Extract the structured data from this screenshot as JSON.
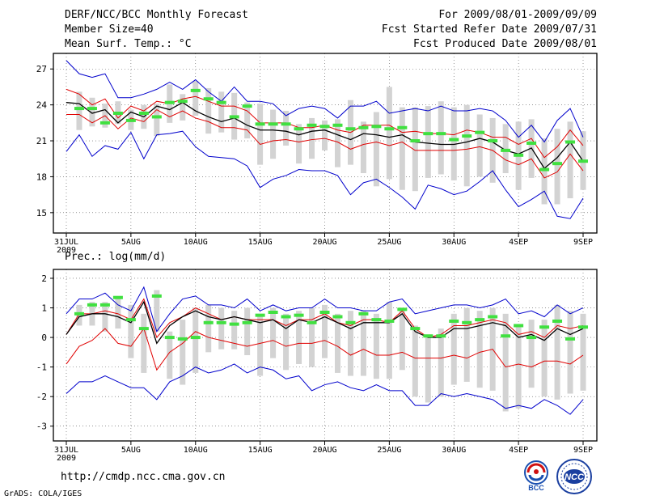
{
  "header": {
    "title": "DERF/NCC/BCC Monthly Forecast",
    "member_size": "Member Size=40",
    "variable": "Mean Surf. Temp.: °C",
    "forecast_range": "For 2009/08/01-2009/09/09",
    "fcst_started": "Fcst Started Refer Date 2009/07/31",
    "fcst_produced": "Fcst Produced Date 2009/08/01"
  },
  "footer": {
    "url": "http://cmdp.ncc.cma.gov.cn",
    "grads": "GrADS: COLA/IGES",
    "logo_bcc": "BCC",
    "logo_ncc": "NCC"
  },
  "colors": {
    "box": "#d3d3d3",
    "ens_mean": "#000000",
    "inner_band": "#e00000",
    "outer_band": "#0000cc",
    "marker": "#40e040"
  },
  "chart_data": [
    {
      "type": "box-line",
      "title": "",
      "ylabel": "Mean Surf. Temp.: °C",
      "ylim": [
        13.3,
        28.3
      ],
      "yticks": [
        15,
        18,
        21,
        24,
        27
      ],
      "xlim": [
        0,
        40
      ],
      "xticks": [
        {
          "day": 0,
          "label": "31JUL",
          "sublabel": "2009"
        },
        {
          "day": 5,
          "label": "5AUG"
        },
        {
          "day": 10,
          "label": "10AUG"
        },
        {
          "day": 15,
          "label": "15AUG"
        },
        {
          "day": 20,
          "label": "20AUG"
        },
        {
          "day": 25,
          "label": "25AUG"
        },
        {
          "day": 30,
          "label": "30AUG"
        },
        {
          "day": 35,
          "label": "4SEP"
        },
        {
          "day": 40,
          "label": "9SEP"
        }
      ],
      "days": [
        1,
        2,
        3,
        4,
        5,
        6,
        7,
        8,
        9,
        10,
        11,
        12,
        13,
        14,
        15,
        16,
        17,
        18,
        19,
        20,
        21,
        22,
        23,
        24,
        25,
        26,
        27,
        28,
        29,
        30,
        31,
        32,
        33,
        34,
        35,
        36,
        37,
        38,
        39,
        40
      ],
      "series": [
        {
          "name": "upper-outer",
          "values": [
            27.7,
            26.6,
            26.3,
            26.6,
            24.6,
            24.6,
            24.9,
            25.3,
            25.9,
            25.3,
            26.1,
            25.1,
            24.3,
            25.5,
            24.3,
            24.3,
            24.1,
            23.1,
            23.7,
            23.9,
            23.7,
            22.9,
            23.9,
            23.9,
            24.3,
            23.3,
            23.5,
            23.7,
            23.5,
            23.9,
            23.5,
            23.5,
            23.7,
            23.5,
            22.7,
            21.3,
            22.3,
            20.9,
            22.7,
            23.7,
            21.3
          ]
        },
        {
          "name": "upper-inner",
          "values": [
            25.3,
            24.9,
            24.0,
            24.5,
            22.9,
            23.9,
            23.5,
            24.3,
            24.1,
            24.5,
            24.7,
            24.3,
            23.9,
            23.9,
            23.5,
            22.5,
            22.5,
            22.5,
            22.1,
            22.1,
            22.3,
            21.9,
            21.7,
            22.3,
            22.3,
            22.3,
            21.7,
            21.8,
            21.6,
            21.6,
            21.5,
            21.9,
            21.7,
            21.3,
            21.3,
            20.7,
            21.2,
            19.6,
            20.5,
            21.9,
            20.6
          ]
        },
        {
          "name": "ensemble-mean",
          "values": [
            24.2,
            24.1,
            23.3,
            23.6,
            22.5,
            23.4,
            23.0,
            23.9,
            23.6,
            24.2,
            23.5,
            23.0,
            22.6,
            22.9,
            22.3,
            21.9,
            21.9,
            21.8,
            21.5,
            21.8,
            21.9,
            21.5,
            21.1,
            21.6,
            21.5,
            21.3,
            21.5,
            20.9,
            20.8,
            20.7,
            20.7,
            20.9,
            21.2,
            20.9,
            20.2,
            19.9,
            20.4,
            18.7,
            19.6,
            20.9,
            19.3
          ]
        },
        {
          "name": "lower-inner",
          "values": [
            23.2,
            23.2,
            22.5,
            23.1,
            22.0,
            22.9,
            22.6,
            23.6,
            23.0,
            23.5,
            22.9,
            22.6,
            22.1,
            22.1,
            21.9,
            20.7,
            21.0,
            21.1,
            20.9,
            21.1,
            21.2,
            20.9,
            20.3,
            20.7,
            20.9,
            20.6,
            20.9,
            20.2,
            20.2,
            20.2,
            20.2,
            20.3,
            20.5,
            20.2,
            19.4,
            19.0,
            19.5,
            17.9,
            18.4,
            19.9,
            18.5
          ]
        },
        {
          "name": "lower-outer",
          "values": [
            20.1,
            21.5,
            19.7,
            20.6,
            20.3,
            21.7,
            19.5,
            21.5,
            21.6,
            21.8,
            20.5,
            19.7,
            19.6,
            19.5,
            18.9,
            17.1,
            17.8,
            18.1,
            18.6,
            18.5,
            18.5,
            18.1,
            16.5,
            17.5,
            17.8,
            17.1,
            16.3,
            15.3,
            17.3,
            17.0,
            16.5,
            16.8,
            17.6,
            18.5,
            16.9,
            15.5,
            16.1,
            16.8,
            14.7,
            14.5,
            16.2
          ]
        }
      ],
      "boxes": [
        {
          "low": 21.9,
          "high": 25.1
        },
        {
          "low": 22.2,
          "high": 24.6
        },
        {
          "low": 22.1,
          "high": 24.1
        },
        {
          "low": 22.4,
          "high": 24.3
        },
        {
          "low": 21.9,
          "high": 23.6
        },
        {
          "low": 22.0,
          "high": 24.0
        },
        {
          "low": 21.4,
          "high": 24.1
        },
        {
          "low": 22.5,
          "high": 25.7
        },
        {
          "low": 22.7,
          "high": 24.9
        },
        {
          "low": 23.1,
          "high": 26.0
        },
        {
          "low": 21.6,
          "high": 25.4
        },
        {
          "low": 21.7,
          "high": 25.1
        },
        {
          "low": 21.1,
          "high": 25.0
        },
        {
          "low": 21.2,
          "high": 24.2
        },
        {
          "low": 19.0,
          "high": 24.1
        },
        {
          "low": 19.5,
          "high": 23.6
        },
        {
          "low": 20.6,
          "high": 23.5
        },
        {
          "low": 19.1,
          "high": 22.4
        },
        {
          "low": 19.5,
          "high": 22.9
        },
        {
          "low": 20.2,
          "high": 22.7
        },
        {
          "low": 18.8,
          "high": 22.8
        },
        {
          "low": 19.0,
          "high": 24.4
        },
        {
          "low": 18.3,
          "high": 22.6
        },
        {
          "low": 17.2,
          "high": 23.4
        },
        {
          "low": 17.8,
          "high": 25.5
        },
        {
          "low": 16.9,
          "high": 23.8
        },
        {
          "low": 16.8,
          "high": 23.8
        },
        {
          "low": 17.9,
          "high": 23.9
        },
        {
          "low": 18.2,
          "high": 24.3
        },
        {
          "low": 17.7,
          "high": 23.8
        },
        {
          "low": 17.2,
          "high": 24.0
        },
        {
          "low": 18.0,
          "high": 23.2
        },
        {
          "low": 17.5,
          "high": 22.9
        },
        {
          "low": 18.3,
          "high": 22.4
        },
        {
          "low": 16.9,
          "high": 22.6
        },
        {
          "low": 17.9,
          "high": 22.8
        },
        {
          "low": 15.7,
          "high": 21.2
        },
        {
          "low": 15.7,
          "high": 22.0
        },
        {
          "low": 16.2,
          "high": 22.6
        },
        {
          "low": 16.9,
          "high": 21.8
        }
      ],
      "markers": [
        23.7,
        23.7,
        22.5,
        23.3,
        22.7,
        23.3,
        23.0,
        24.2,
        24.3,
        25.2,
        24.5,
        24.2,
        23.0,
        23.9,
        22.4,
        22.4,
        22.4,
        22.0,
        22.3,
        22.2,
        22.3,
        22.0,
        22.1,
        22.2,
        22.0,
        22.1,
        21.0,
        21.6,
        21.6,
        21.1,
        21.4,
        21.7,
        21.0,
        20.2,
        19.8,
        20.8,
        18.6,
        19.1,
        20.9,
        19.3
      ]
    },
    {
      "type": "box-line",
      "title": "",
      "ylabel": "Prec.: log(mm/d)",
      "ylim": [
        -3.5,
        2.3
      ],
      "yticks": [
        -3,
        -2,
        -1,
        0,
        1,
        2
      ],
      "xlim": [
        0,
        40
      ],
      "xticks": [
        {
          "day": 0,
          "label": "31JUL",
          "sublabel": "2009"
        },
        {
          "day": 5,
          "label": "5AUG"
        },
        {
          "day": 10,
          "label": "10AUG"
        },
        {
          "day": 15,
          "label": "15AUG"
        },
        {
          "day": 20,
          "label": "20AUG"
        },
        {
          "day": 25,
          "label": "25AUG"
        },
        {
          "day": 30,
          "label": "30AUG"
        },
        {
          "day": 35,
          "label": "4SEP"
        },
        {
          "day": 40,
          "label": "9SEP"
        }
      ],
      "days": [
        1,
        2,
        3,
        4,
        5,
        6,
        7,
        8,
        9,
        10,
        11,
        12,
        13,
        14,
        15,
        16,
        17,
        18,
        19,
        20,
        21,
        22,
        23,
        24,
        25,
        26,
        27,
        28,
        29,
        30,
        31,
        32,
        33,
        34,
        35,
        36,
        37,
        38,
        39,
        40
      ],
      "series": [
        {
          "name": "upper-outer",
          "values": [
            0.8,
            1.3,
            1.3,
            1.5,
            1.1,
            0.9,
            1.7,
            0.2,
            0.8,
            1.3,
            1.4,
            1.1,
            1.1,
            1.0,
            1.3,
            0.9,
            1.1,
            0.9,
            1.0,
            1.0,
            1.3,
            1.0,
            1.0,
            0.9,
            0.9,
            1.2,
            1.3,
            0.8,
            0.9,
            1.0,
            1.1,
            1.1,
            1.0,
            1.1,
            1.3,
            0.8,
            0.9,
            0.7,
            1.1,
            0.8,
            1.0
          ]
        },
        {
          "name": "upper-inner",
          "values": [
            0.1,
            0.8,
            0.8,
            0.9,
            0.8,
            0.6,
            1.3,
            0.0,
            0.5,
            0.7,
            1.0,
            0.8,
            0.6,
            0.7,
            0.6,
            0.6,
            0.6,
            0.4,
            0.6,
            0.6,
            0.8,
            0.5,
            0.4,
            0.6,
            0.6,
            0.5,
            0.9,
            0.3,
            0.0,
            0.1,
            0.4,
            0.4,
            0.5,
            0.6,
            0.5,
            0.1,
            0.2,
            0.0,
            0.4,
            0.3,
            0.4
          ]
        },
        {
          "name": "ensemble-mean",
          "values": [
            0.1,
            0.7,
            0.8,
            0.8,
            0.7,
            0.5,
            1.2,
            -0.2,
            0.4,
            0.7,
            0.9,
            0.7,
            0.6,
            0.7,
            0.6,
            0.5,
            0.6,
            0.3,
            0.6,
            0.5,
            0.7,
            0.5,
            0.3,
            0.5,
            0.5,
            0.5,
            0.8,
            0.2,
            0.0,
            0.0,
            0.3,
            0.3,
            0.4,
            0.5,
            0.4,
            0.0,
            0.1,
            -0.1,
            0.3,
            0.1,
            0.3
          ]
        },
        {
          "name": "lower-inner",
          "values": [
            -0.9,
            -0.3,
            -0.1,
            0.3,
            -0.2,
            -0.3,
            0.3,
            -1.1,
            -0.5,
            -0.2,
            0.2,
            0.0,
            -0.1,
            -0.2,
            -0.3,
            -0.2,
            -0.1,
            -0.3,
            -0.2,
            -0.2,
            -0.1,
            -0.3,
            -0.6,
            -0.4,
            -0.6,
            -0.6,
            -0.5,
            -0.7,
            -0.7,
            -0.7,
            -0.6,
            -0.7,
            -0.5,
            -0.4,
            -1.0,
            -0.9,
            -1.0,
            -0.8,
            -0.8,
            -0.9,
            -0.6
          ]
        },
        {
          "name": "lower-outer",
          "values": [
            -1.9,
            -1.5,
            -1.5,
            -1.3,
            -1.5,
            -1.7,
            -1.7,
            -2.1,
            -1.5,
            -1.3,
            -1.0,
            -1.2,
            -1.1,
            -0.9,
            -1.2,
            -1.0,
            -1.1,
            -1.4,
            -1.3,
            -1.8,
            -1.6,
            -1.5,
            -1.7,
            -1.8,
            -1.6,
            -1.8,
            -1.8,
            -2.3,
            -2.3,
            -1.9,
            -2.0,
            -1.9,
            -2.0,
            -2.1,
            -2.4,
            -2.3,
            -2.4,
            -2.1,
            -2.3,
            -2.6,
            -2.1
          ]
        }
      ],
      "boxes": [
        {
          "low": 0.4,
          "high": 1.1
        },
        {
          "low": 0.4,
          "high": 1.2
        },
        {
          "low": 0.2,
          "high": 1.2
        },
        {
          "low": 0.3,
          "high": 1.4
        },
        {
          "low": -0.7,
          "high": 1.1
        },
        {
          "low": -1.2,
          "high": 0.8
        },
        {
          "low": 0.2,
          "high": 1.6
        },
        {
          "low": -1.4,
          "high": 0.2
        },
        {
          "low": -1.6,
          "high": 0.6
        },
        {
          "low": -1.2,
          "high": 1.0
        },
        {
          "low": -0.5,
          "high": 1.1
        },
        {
          "low": -0.4,
          "high": 1.0
        },
        {
          "low": -0.4,
          "high": 0.9
        },
        {
          "low": -0.6,
          "high": 1.0
        },
        {
          "low": -1.3,
          "high": 0.8
        },
        {
          "low": -0.7,
          "high": 1.0
        },
        {
          "low": -1.1,
          "high": 0.8
        },
        {
          "low": -0.9,
          "high": 0.9
        },
        {
          "low": -1.0,
          "high": 1.0
        },
        {
          "low": -0.7,
          "high": 1.1
        },
        {
          "low": -1.2,
          "high": 0.8
        },
        {
          "low": -1.3,
          "high": 0.9
        },
        {
          "low": -1.3,
          "high": 0.9
        },
        {
          "low": -1.4,
          "high": 0.8
        },
        {
          "low": -1.4,
          "high": 1.2
        },
        {
          "low": -1.1,
          "high": 1.0
        },
        {
          "low": -2.0,
          "high": 0.4
        },
        {
          "low": -2.2,
          "high": 0.1
        },
        {
          "low": -2.0,
          "high": 0.3
        },
        {
          "low": -1.6,
          "high": 0.8
        },
        {
          "low": -1.5,
          "high": 1.0
        },
        {
          "low": -1.7,
          "high": 0.9
        },
        {
          "low": -1.8,
          "high": 1.0
        },
        {
          "low": -2.5,
          "high": 0.8
        },
        {
          "low": -2.4,
          "high": 0.4
        },
        {
          "low": -1.7,
          "high": 0.6
        },
        {
          "low": -2.0,
          "high": 0.6
        },
        {
          "low": -2.1,
          "high": 1.1
        },
        {
          "low": -1.9,
          "high": 0.9
        },
        {
          "low": -1.8,
          "high": 0.8
        }
      ],
      "markers": [
        0.8,
        1.1,
        1.1,
        1.35,
        0.6,
        0.3,
        1.4,
        0.0,
        -0.05,
        0.0,
        0.5,
        0.5,
        0.45,
        0.5,
        0.75,
        0.85,
        0.7,
        0.75,
        0.5,
        0.85,
        0.7,
        0.5,
        0.8,
        0.6,
        0.55,
        0.95,
        0.3,
        0.05,
        0.05,
        0.55,
        0.5,
        0.6,
        0.7,
        0.05,
        0.4,
        0.0,
        0.35,
        0.55,
        -0.05,
        0.35
      ]
    }
  ]
}
